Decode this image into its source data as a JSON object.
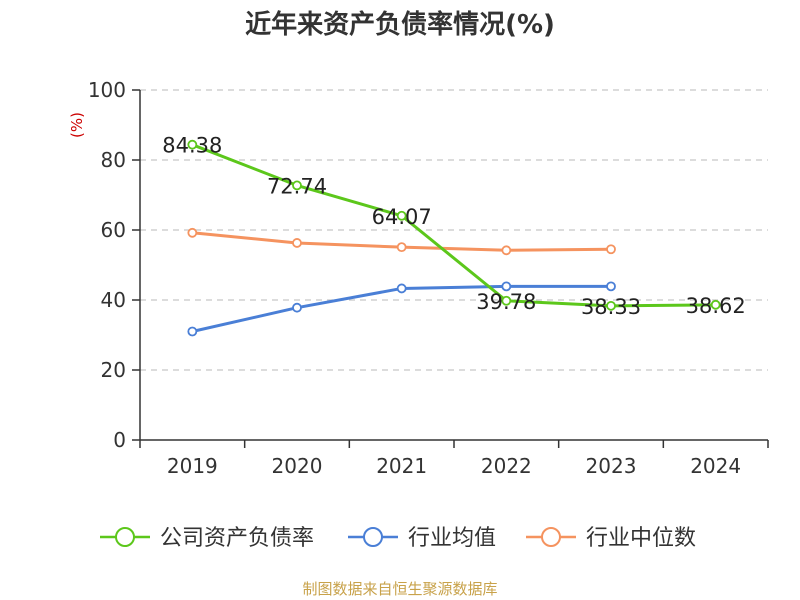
{
  "chart_data": {
    "type": "line",
    "title": "近年来资产负债率情况(%)",
    "ylabel": "(%)",
    "xlabel": "",
    "categories": [
      "2019",
      "2020",
      "2021",
      "2022",
      "2023",
      "2024"
    ],
    "ylim": [
      0,
      100
    ],
    "yticks": [
      0,
      20,
      40,
      60,
      80,
      100
    ],
    "grid": true,
    "legend_position": "bottom",
    "series": [
      {
        "name": "公司资产负债率",
        "color": "#5cc71b",
        "values": [
          84.38,
          72.74,
          64.07,
          39.78,
          38.33,
          38.62
        ],
        "labels": [
          "84.38",
          "72.74",
          "64.07",
          "39.78",
          "38.33",
          "38.62"
        ]
      },
      {
        "name": "行业均值",
        "color": "#4a7fd6",
        "values": [
          31.0,
          37.8,
          43.3,
          43.9,
          43.9,
          null
        ]
      },
      {
        "name": "行业中位数",
        "color": "#f5935f",
        "values": [
          59.2,
          56.3,
          55.1,
          54.2,
          54.5,
          null
        ]
      }
    ]
  },
  "footer": {
    "source": "制图数据来自恒生聚源数据库"
  }
}
